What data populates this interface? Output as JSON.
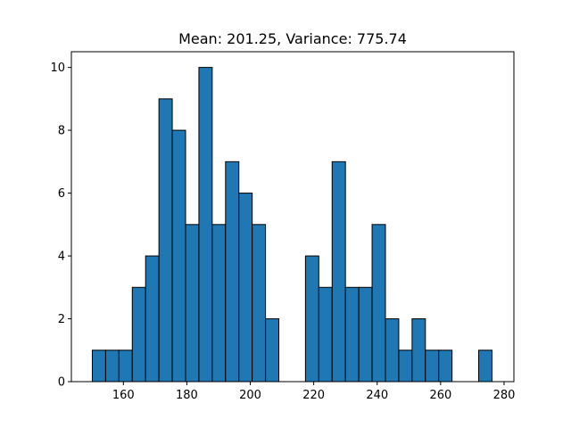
{
  "chart_data": {
    "type": "bar",
    "title": "Mean: 201.25, Variance: 775.74",
    "xlabel": "",
    "ylabel": "",
    "xlim": [
      143.6,
      283.1
    ],
    "ylim": [
      0,
      10.5
    ],
    "x_ticks": [
      160,
      180,
      200,
      220,
      240,
      260,
      280
    ],
    "y_ticks": [
      0,
      2,
      4,
      6,
      8,
      10
    ],
    "bin_width": 4.2,
    "bin_starts": [
      150.2,
      154.4,
      158.6,
      162.8,
      167.0,
      171.2,
      175.4,
      179.6,
      183.8,
      188.0,
      192.2,
      196.4,
      200.6,
      204.8,
      209.0,
      213.2,
      217.4,
      221.6,
      225.8,
      230.0,
      234.2,
      238.4,
      242.6,
      246.8,
      251.0,
      255.2,
      259.4,
      263.6,
      267.8,
      272.0
    ],
    "values": [
      1,
      1,
      1,
      3,
      4,
      9,
      8,
      5,
      10,
      5,
      7,
      6,
      5,
      2,
      0,
      0,
      4,
      3,
      7,
      3,
      3,
      5,
      2,
      1,
      2,
      1,
      1,
      0,
      0,
      1
    ],
    "colors": {
      "bar": "#1f77b4",
      "edge": "#000000"
    },
    "grid": false
  }
}
